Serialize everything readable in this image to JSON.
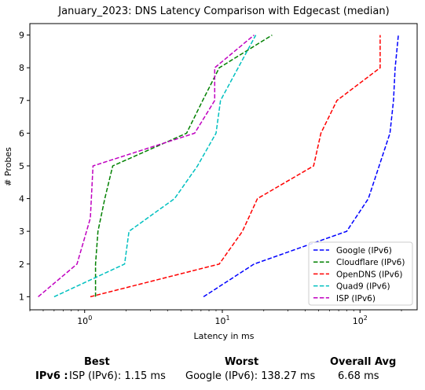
{
  "chart_data": {
    "type": "line",
    "title": "January_2023: DNS Latency Comparison with Edgecast (median)",
    "xlabel": "Latency in ms",
    "ylabel": "# Probes",
    "xscale": "log",
    "xlim": [
      0.4,
      260
    ],
    "ylim": [
      0.6,
      9.35
    ],
    "x_ticks": [
      "10^0",
      "10^1",
      "10^2"
    ],
    "y_ticks": [
      "1",
      "2",
      "3",
      "4",
      "5",
      "6",
      "7",
      "8",
      "9"
    ],
    "legend_position": "lower-right",
    "series": [
      {
        "name": "Google (IPv6)",
        "color": "#0000ff",
        "x": [
          7.3,
          17,
          80,
          115,
          165,
          175,
          180,
          190
        ],
        "y": [
          1,
          2,
          3,
          4,
          6,
          7,
          8,
          9
        ]
      },
      {
        "name": "Cloudflare (IPv6)",
        "color": "#008000",
        "x": [
          1.2,
          1.2,
          1.25,
          1.4,
          1.6,
          5.5,
          7.2,
          9.5,
          23
        ],
        "y": [
          1,
          2,
          3,
          4,
          5,
          6,
          7,
          8,
          9
        ]
      },
      {
        "name": "OpenDNS (IPv6)",
        "color": "#ff0000",
        "x": [
          1.1,
          9.5,
          14,
          18,
          46,
          52,
          68,
          140,
          140
        ],
        "y": [
          1,
          2,
          3,
          4,
          5,
          6,
          7,
          8,
          9
        ]
      },
      {
        "name": "Quad9 (IPv6)",
        "color": "#00c0c0",
        "x": [
          0.6,
          1.95,
          2.1,
          4.5,
          6.6,
          9,
          9.7,
          17.5
        ],
        "y": [
          1,
          2,
          3,
          4,
          5,
          6,
          7,
          9
        ]
      },
      {
        "name": "ISP (IPv6)",
        "color": "#c000c0",
        "x": [
          0.46,
          0.88,
          1.1,
          1.15,
          6.3,
          8.8,
          8.8,
          17
        ],
        "y": [
          1,
          2,
          3.4,
          5,
          6,
          7,
          8,
          9
        ]
      }
    ]
  },
  "summary": {
    "headers": {
      "best": "Best",
      "worst": "Worst",
      "avg": "Overall Avg"
    },
    "row_label": "IPv6 :",
    "best": "ISP (IPv6): 1.15 ms",
    "worst": "Google (IPv6): 138.27 ms",
    "avg": "6.68 ms"
  }
}
